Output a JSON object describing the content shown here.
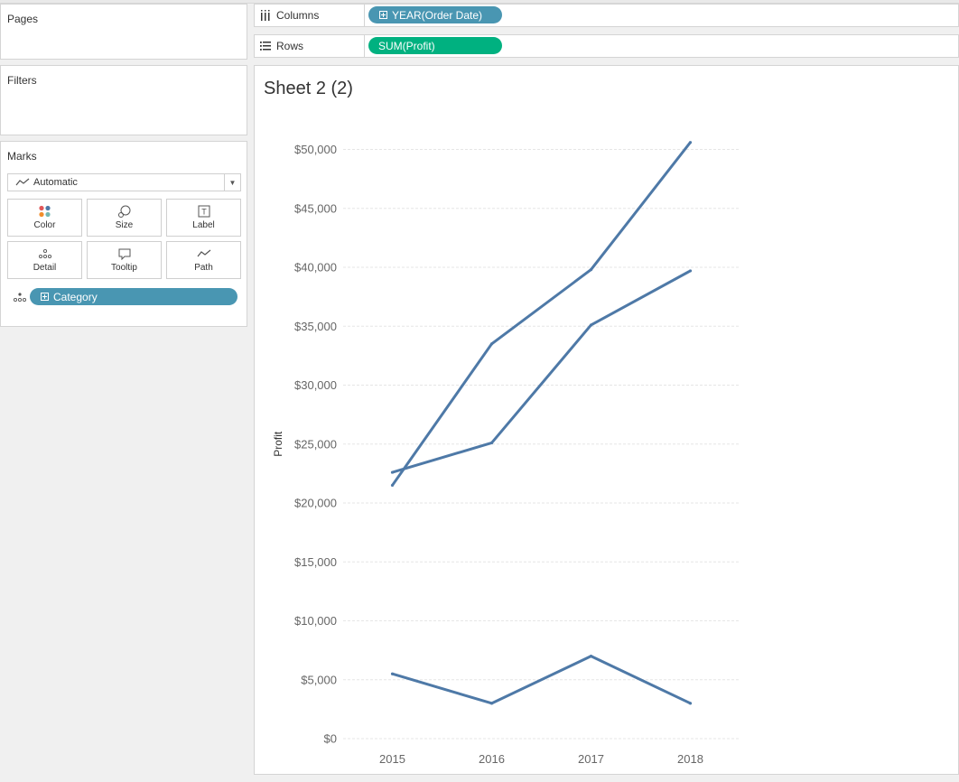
{
  "panels": {
    "pages": "Pages",
    "filters": "Filters",
    "marks": "Marks"
  },
  "shelves": {
    "columns": {
      "label": "Columns",
      "pill": "YEAR(Order Date)",
      "pill_color": "#4996b2"
    },
    "rows": {
      "label": "Rows",
      "pill": "SUM(Profit)",
      "pill_color": "#00b180"
    }
  },
  "marks": {
    "type": "Automatic",
    "buttons": {
      "color": "Color",
      "size": "Size",
      "label": "Label",
      "detail": "Detail",
      "tooltip": "Tooltip",
      "path": "Path"
    },
    "detail_pill": "Category",
    "detail_pill_color": "#4996b2"
  },
  "sheet": {
    "title": "Sheet 2 (2)"
  },
  "chart_data": {
    "type": "line",
    "x": [
      "2015",
      "2016",
      "2017",
      "2018"
    ],
    "series": [
      {
        "values": [
          21500,
          33500,
          39800,
          50600
        ]
      },
      {
        "values": [
          22600,
          25100,
          35100,
          39700
        ]
      },
      {
        "values": [
          5500,
          3000,
          7000,
          3000
        ]
      }
    ],
    "ylabel": "Profit",
    "ylim": [
      0,
      50000
    ],
    "yticks": [
      0,
      5000,
      10000,
      15000,
      20000,
      25000,
      30000,
      35000,
      40000,
      45000,
      50000
    ],
    "ytick_labels": [
      "$0",
      "$5,000",
      "$10,000",
      "$15,000",
      "$20,000",
      "$25,000",
      "$30,000",
      "$35,000",
      "$40,000",
      "$45,000",
      "$50,000"
    ],
    "line_color": "#4e79a7",
    "grid": true
  }
}
